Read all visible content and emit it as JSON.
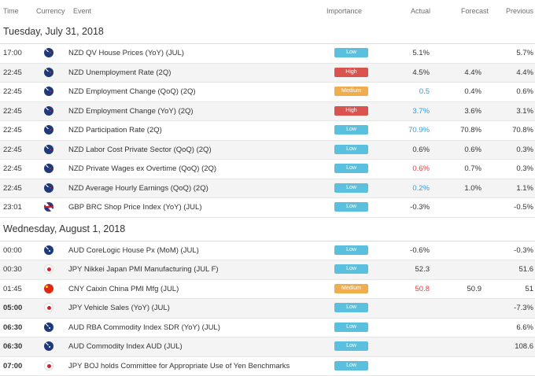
{
  "header": {
    "time": "Time",
    "currency": "Currency",
    "event": "Event",
    "importance": "Importance",
    "actual": "Actual",
    "forecast": "Forecast",
    "previous": "Previous"
  },
  "colors": {
    "low": "#5bc0de",
    "medium": "#f0ad4e",
    "high": "#d9534f"
  },
  "days": [
    {
      "label": "Tuesday, July 31, 2018",
      "rows": [
        {
          "time": "17:00",
          "flag": "nz",
          "event": "NZD QV House Prices (YoY) (JUL)",
          "importance": "Low",
          "level": "low",
          "actual": "5.1%",
          "actual_color": "",
          "forecast": "",
          "previous": "5.7%",
          "bold": false
        },
        {
          "time": "22:45",
          "flag": "nz",
          "event": "NZD Unemployment Rate (2Q)",
          "importance": "High",
          "level": "high",
          "actual": "4.5%",
          "actual_color": "",
          "forecast": "4.4%",
          "previous": "4.4%",
          "bold": false
        },
        {
          "time": "22:45",
          "flag": "nz",
          "event": "NZD Employment Change (QoQ) (2Q)",
          "importance": "Medium",
          "level": "medium",
          "actual": "0.5",
          "actual_color": "blue",
          "forecast": "0.4%",
          "previous": "0.6%",
          "bold": false
        },
        {
          "time": "22:45",
          "flag": "nz",
          "event": "NZD Employment Change (YoY) (2Q)",
          "importance": "High",
          "level": "high",
          "actual": "3.7%",
          "actual_color": "blue",
          "forecast": "3.6%",
          "previous": "3.1%",
          "bold": false
        },
        {
          "time": "22:45",
          "flag": "nz",
          "event": "NZD Participation Rate (2Q)",
          "importance": "Low",
          "level": "low",
          "actual": "70.9%",
          "actual_color": "blue",
          "forecast": "70.8%",
          "previous": "70.8%",
          "bold": false
        },
        {
          "time": "22:45",
          "flag": "nz",
          "event": "NZD Labor Cost Private Sector (QoQ) (2Q)",
          "importance": "Low",
          "level": "low",
          "actual": "0.6%",
          "actual_color": "",
          "forecast": "0.6%",
          "previous": "0.3%",
          "bold": false
        },
        {
          "time": "22:45",
          "flag": "nz",
          "event": "NZD Private Wages ex Overtime (QoQ) (2Q)",
          "importance": "Low",
          "level": "low",
          "actual": "0.6%",
          "actual_color": "red",
          "forecast": "0.7%",
          "previous": "0.3%",
          "bold": false
        },
        {
          "time": "22:45",
          "flag": "nz",
          "event": "NZD Average Hourly Earnings (QoQ) (2Q)",
          "importance": "Low",
          "level": "low",
          "actual": "0.2%",
          "actual_color": "blue",
          "forecast": "1.0%",
          "previous": "1.1%",
          "bold": false
        },
        {
          "time": "23:01",
          "flag": "gb",
          "event": "GBP BRC Shop Price Index (YoY) (JUL)",
          "importance": "Low",
          "level": "low",
          "actual": "-0.3%",
          "actual_color": "",
          "forecast": "",
          "previous": "-0.5%",
          "bold": false
        }
      ]
    },
    {
      "label": "Wednesday, August 1, 2018",
      "rows": [
        {
          "time": "00:00",
          "flag": "au",
          "event": "AUD CoreLogic House Px (MoM) (JUL)",
          "importance": "Low",
          "level": "low",
          "actual": "-0.6%",
          "actual_color": "",
          "forecast": "",
          "previous": "-0.3%",
          "bold": false
        },
        {
          "time": "00:30",
          "flag": "jp",
          "event": "JPY Nikkei Japan PMI Manufacturing (JUL F)",
          "importance": "Low",
          "level": "low",
          "actual": "52.3",
          "actual_color": "",
          "forecast": "",
          "previous": "51.6",
          "bold": false
        },
        {
          "time": "01:45",
          "flag": "cn",
          "event": "CNY Caixin China PMI Mfg (JUL)",
          "importance": "Medium",
          "level": "medium",
          "actual": "50.8",
          "actual_color": "red",
          "forecast": "50.9",
          "previous": "51",
          "bold": false
        },
        {
          "time": "05:00",
          "flag": "jp",
          "event": "JPY Vehicle Sales (YoY) (JUL)",
          "importance": "Low",
          "level": "low",
          "actual": "",
          "actual_color": "",
          "forecast": "",
          "previous": "-7.3%",
          "bold": true
        },
        {
          "time": "06:30",
          "flag": "au",
          "event": "AUD RBA Commodity Index SDR (YoY) (JUL)",
          "importance": "Low",
          "level": "low",
          "actual": "",
          "actual_color": "",
          "forecast": "",
          "previous": "6.6%",
          "bold": true
        },
        {
          "time": "06:30",
          "flag": "au",
          "event": "AUD Commodity Index AUD (JUL)",
          "importance": "Low",
          "level": "low",
          "actual": "",
          "actual_color": "",
          "forecast": "",
          "previous": "108.6",
          "bold": true
        },
        {
          "time": "07:00",
          "flag": "jp",
          "event": "JPY BOJ holds Committee for Appropriate Use of Yen Benchmarks",
          "importance": "Low",
          "level": "low",
          "actual": "",
          "actual_color": "",
          "forecast": "",
          "previous": "",
          "bold": true
        }
      ]
    }
  ]
}
